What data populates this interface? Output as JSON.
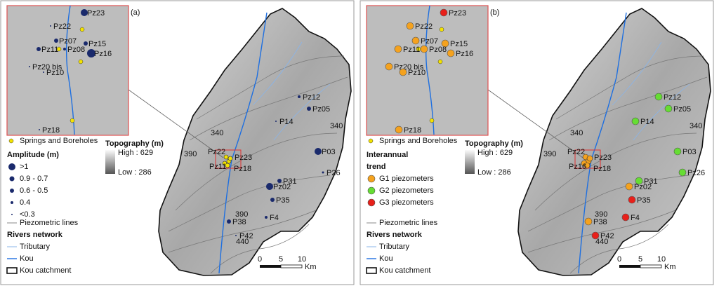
{
  "panels": [
    {
      "label": "(a)",
      "inset_points": [
        "Pz23",
        "Pz22",
        "Pz07",
        "Pz15",
        "Pz11",
        "Pz08",
        "Pz16",
        "Pz20 bis",
        "Pz10",
        "Pz18"
      ],
      "map_points": [
        "Pz12",
        "Pz05",
        "P14",
        "P03",
        "P26",
        "P31",
        "Pz02",
        "P35",
        "P38",
        "F4",
        "P42",
        "Pz22",
        "Pz23",
        "Pz11",
        "Pz18"
      ],
      "contour_labels": [
        "340",
        "340",
        "390",
        "390",
        "440"
      ],
      "springs": "Springs and Boreholes",
      "legend_title": [
        "Amplitude (m)"
      ],
      "classes": [
        ">1",
        "0.9 - 0.7",
        "0.6 - 0.5",
        "0.4",
        "<0.3"
      ],
      "lines": [
        "Piezometric lines",
        "Rivers network",
        "Tributary",
        "Kou",
        "Kou catchment"
      ],
      "topography": {
        "title": "Topography (m)",
        "high": "High : 629",
        "low": "Low : 286"
      },
      "scale": {
        "ticks": [
          "0",
          "5",
          "10"
        ],
        "unit": "Km"
      }
    },
    {
      "label": "(b)",
      "inset_points": [
        "Pz23",
        "Pz22",
        "Pz07",
        "Pz15",
        "Pz11",
        "Pz08",
        "Pz16",
        "Pz20 bis",
        "Pz10",
        "Pz18"
      ],
      "map_points": [
        "Pz12",
        "Pz05",
        "P14",
        "P03",
        "Pz26",
        "P31",
        "Pz02",
        "P35",
        "P38",
        "F4",
        "P42",
        "Pz22",
        "Pz23",
        "Pz16",
        "Pz18"
      ],
      "contour_labels": [
        "340",
        "340",
        "390",
        "390",
        "440"
      ],
      "springs": "Springs and Boreholes",
      "legend_title": [
        "Interannual",
        "trend"
      ],
      "classes": [
        "G1 piezometers",
        "G2 piezometers",
        "G3 piezometers"
      ],
      "lines": [
        "Piezometric lines",
        "Rivers network",
        "Tributary",
        "Kou",
        "Kou catchment"
      ],
      "topography": {
        "title": "Topography (m)",
        "high": "High : 629",
        "low": "Low : 286"
      },
      "scale": {
        "ticks": [
          "0",
          "5",
          "10"
        ],
        "unit": "Km"
      }
    }
  ]
}
